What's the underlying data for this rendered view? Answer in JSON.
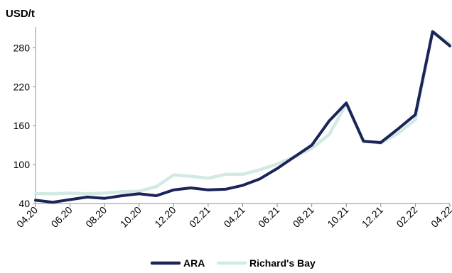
{
  "chart_data": {
    "type": "line",
    "unit_label": "USD/t",
    "ylim": [
      40,
      310
    ],
    "y_ticks": [
      "40",
      "100",
      "160",
      "220",
      "280"
    ],
    "x_tick_labels": [
      "04.20",
      "06.20",
      "08.20",
      "10.20",
      "12.20",
      "02.21",
      "04.21",
      "06.21",
      "08.21",
      "10.21",
      "12.21",
      "02.22",
      "04.22"
    ],
    "x": [
      "04.20",
      "05.20",
      "06.20",
      "07.20",
      "08.20",
      "09.20",
      "10.20",
      "11.20",
      "12.20",
      "01.21",
      "02.21",
      "03.21",
      "04.21",
      "05.21",
      "06.21",
      "07.21",
      "08.21",
      "09.21",
      "10.21",
      "11.21",
      "12.21",
      "01.22",
      "02.22",
      "03.22",
      "04.22"
    ],
    "series": [
      {
        "name": "ARA",
        "color": "#1b2458",
        "values": [
          45,
          42,
          46,
          50,
          48,
          52,
          55,
          52,
          61,
          64,
          61,
          62,
          68,
          78,
          94,
          112,
          130,
          167,
          195,
          136,
          134,
          155,
          177,
          305,
          283
        ]
      },
      {
        "name": "Richard's Bay",
        "color": "#d3e9e3",
        "values": [
          55,
          55,
          56,
          55,
          56,
          58,
          59,
          66,
          84,
          82,
          79,
          85,
          85,
          92,
          101,
          112,
          125,
          146,
          193,
          136,
          133,
          148,
          169,
          305,
          286
        ]
      }
    ],
    "legend": {
      "position": "bottom-center",
      "items": [
        "ARA",
        "Richard's Bay"
      ]
    },
    "grid": false
  }
}
